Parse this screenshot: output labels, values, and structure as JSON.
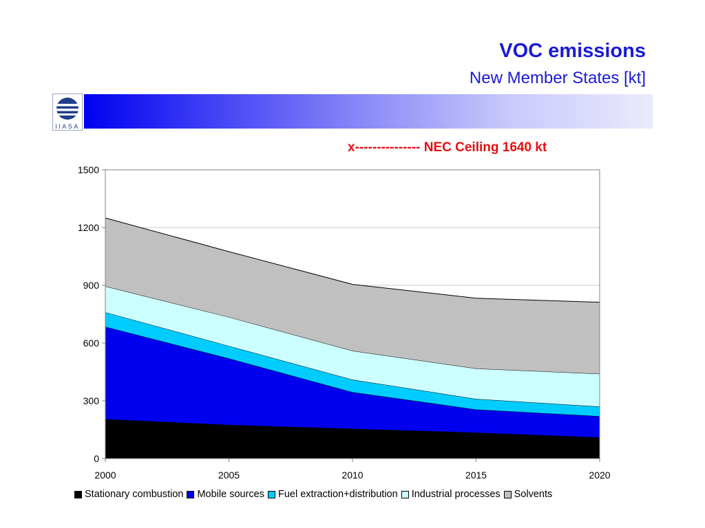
{
  "header": {
    "title": "VOC emissions",
    "subtitle": "New Member States [kt]"
  },
  "logo": {
    "icon": "iiasa-logo-icon",
    "text": "IIASA"
  },
  "annotation": {
    "text": "x--------------- NEC Ceiling 1640 kt",
    "color": "#e31010"
  },
  "chart_data": {
    "type": "area",
    "stacked": true,
    "x": [
      2000,
      2005,
      2010,
      2015,
      2020
    ],
    "x_tick_labels": [
      "2000",
      "2005",
      "2010",
      "2015",
      "2020"
    ],
    "y_tick_labels": [
      "0",
      "300",
      "600",
      "900",
      "1200",
      "1500"
    ],
    "ylim": [
      0,
      1500
    ],
    "grid": true,
    "legend_position": "bottom",
    "series": [
      {
        "name": "Stationary combustion",
        "color": "#000000",
        "values": [
          205,
          175,
          155,
          135,
          110
        ]
      },
      {
        "name": "Mobile sources",
        "color": "#0000ee",
        "values": [
          480,
          345,
          190,
          120,
          110
        ]
      },
      {
        "name": "Fuel extraction+distribution",
        "color": "#00ccff",
        "values": [
          75,
          65,
          65,
          55,
          50
        ]
      },
      {
        "name": "Industrial processes",
        "color": "#ccffff",
        "values": [
          135,
          150,
          150,
          158,
          170
        ]
      },
      {
        "name": "Solvents",
        "color": "#c0c0c0",
        "values": [
          355,
          340,
          345,
          365,
          372
        ]
      }
    ]
  }
}
